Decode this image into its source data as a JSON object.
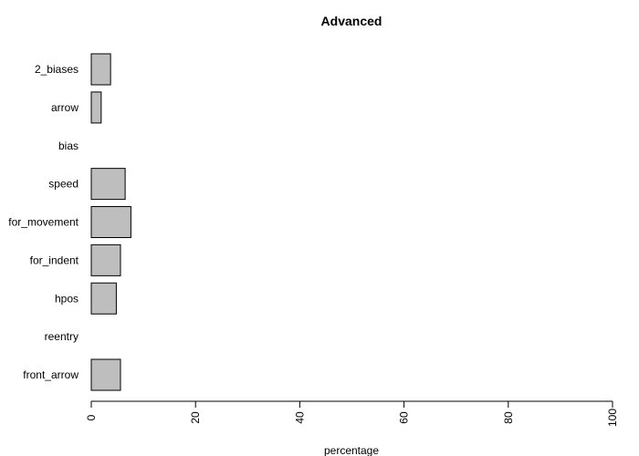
{
  "chart_data": {
    "type": "bar",
    "orientation": "horizontal",
    "title": "Advanced",
    "xlabel": "percentage",
    "ylabel": "",
    "xlim": [
      0,
      100
    ],
    "xticks": [
      0,
      20,
      40,
      60,
      80,
      100
    ],
    "categories": [
      "2_biases",
      "arrow",
      "bias",
      "speed",
      "for_movement",
      "for_indent",
      "hpos",
      "reentry",
      "front_arrow"
    ],
    "values": [
      3.7,
      1.9,
      0.0,
      6.5,
      7.6,
      5.6,
      4.8,
      0.0,
      5.6
    ],
    "bar_color": "#bebebe",
    "bar_stroke": "#000000",
    "grid": false
  }
}
